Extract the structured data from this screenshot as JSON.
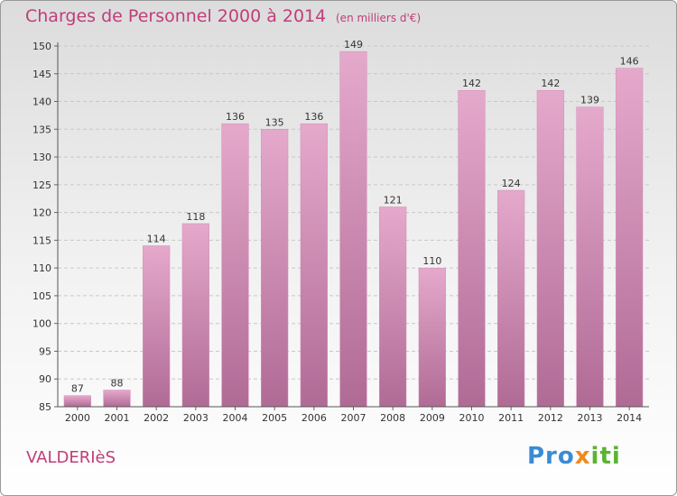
{
  "chart_data": {
    "type": "bar",
    "title": "Charges de Personnel 2000 à 2014",
    "subtitle": "(en milliers d'€)",
    "categories": [
      "2000",
      "2001",
      "2002",
      "2003",
      "2004",
      "2005",
      "2006",
      "2007",
      "2008",
      "2009",
      "2010",
      "2011",
      "2012",
      "2013",
      "2014"
    ],
    "values": [
      87,
      88,
      114,
      118,
      136,
      135,
      136,
      149,
      121,
      110,
      142,
      124,
      142,
      139,
      146
    ],
    "ylim": [
      85,
      150
    ],
    "yticks": [
      85,
      90,
      95,
      100,
      105,
      110,
      115,
      120,
      125,
      130,
      135,
      140,
      145,
      150
    ],
    "grid": true,
    "bar_color": "#c2709f"
  },
  "footer": {
    "town": "VALDERIèS",
    "brand": {
      "part1": "Pro",
      "part2": "x",
      "part3": "iti"
    }
  }
}
